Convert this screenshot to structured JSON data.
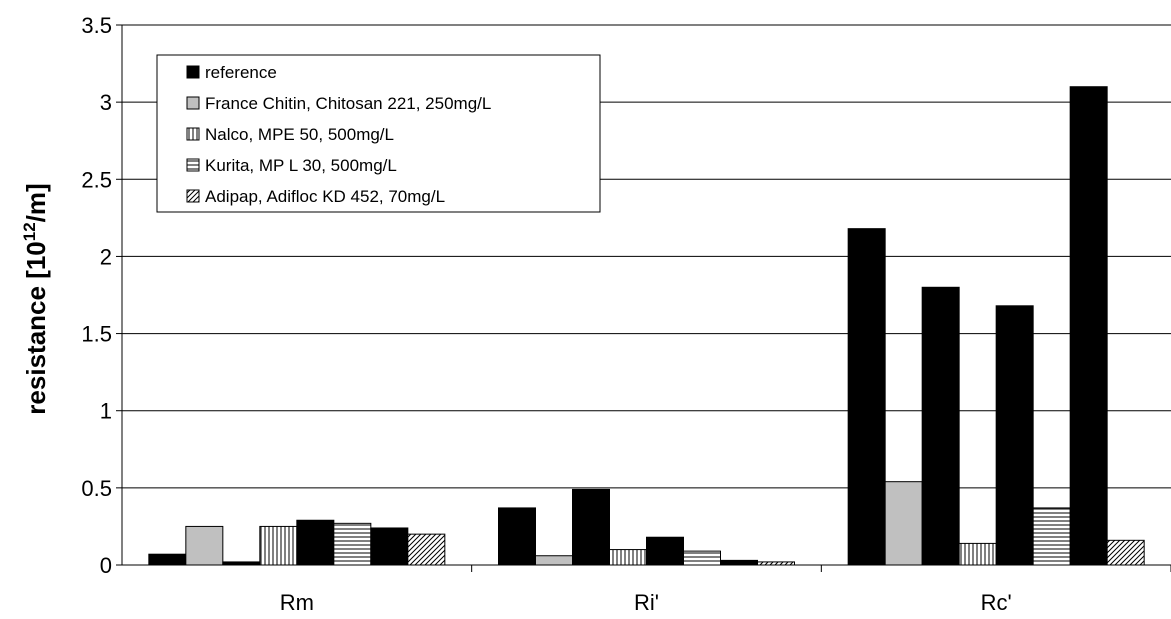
{
  "chart_data": {
    "type": "bar",
    "title": "",
    "xlabel": "",
    "ylabel": "resistance [10",
    "ylabel_sup": "12",
    "ylabel_suffix": "/m]",
    "ylim": [
      0,
      3.5
    ],
    "yticks": [
      "0",
      "0.5",
      "1",
      "1.5",
      "2",
      "2.5",
      "3",
      "3.5"
    ],
    "grid": true,
    "legend_position": "top-left",
    "categories": [
      "Rm",
      "Ri'",
      "Rc'"
    ],
    "series": [
      {
        "name": "reference",
        "pattern": "solid-black",
        "values": [
          0.07,
          0.37,
          2.18
        ]
      },
      {
        "name": "France Chitin, Chitosan 221, 250mg/L",
        "pattern": "solid-gray",
        "values": [
          0.25,
          0.06,
          0.54
        ]
      },
      {
        "name": "",
        "pattern": "solid-black",
        "values": [
          0.02,
          0.49,
          1.8
        ]
      },
      {
        "name": "Nalco, MPE 50, 500mg/L",
        "pattern": "vertical-lines",
        "values": [
          0.25,
          0.1,
          0.14
        ]
      },
      {
        "name": "",
        "pattern": "solid-black",
        "values": [
          0.29,
          0.18,
          1.68
        ]
      },
      {
        "name": "Kurita, MP L 30, 500mg/L",
        "pattern": "horizontal-lines",
        "values": [
          0.27,
          0.09,
          0.37
        ]
      },
      {
        "name": "",
        "pattern": "solid-black",
        "values": [
          0.24,
          0.03,
          3.1
        ]
      },
      {
        "name": "Adipap, Adifloc KD 452, 70mg/L",
        "pattern": "diagonal-lines",
        "values": [
          0.2,
          0.02,
          0.16
        ]
      }
    ],
    "legend": [
      {
        "label": "reference",
        "pattern": "solid-black"
      },
      {
        "label": "France Chitin, Chitosan 221, 250mg/L",
        "pattern": "solid-gray"
      },
      {
        "label": "Nalco, MPE 50, 500mg/L",
        "pattern": "vertical-lines"
      },
      {
        "label": "Kurita, MP L 30, 500mg/L",
        "pattern": "horizontal-lines"
      },
      {
        "label": "Adipap, Adifloc KD 452, 70mg/L",
        "pattern": "diagonal-lines"
      }
    ],
    "colors": {
      "black": "#000000",
      "gray": "#c0c0c0",
      "grid": "#000000",
      "background": "#ffffff"
    }
  }
}
